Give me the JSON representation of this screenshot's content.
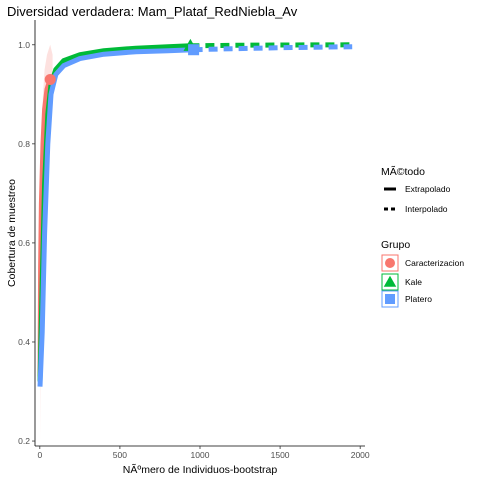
{
  "chart_data": {
    "type": "line",
    "title": "Diversidad verdadera: Mam_Plataf_RedNiebla_Av",
    "xlabel": "NÃºmero de Individuos-bootstrap",
    "ylabel": "Cobertura de muestreo",
    "xlim": [
      -30,
      2030
    ],
    "ylim": [
      0.19,
      1.05
    ],
    "xticks": [
      0,
      500,
      1000,
      1500,
      2000
    ],
    "xtick_labels": [
      "0",
      "500",
      "1000",
      "1500",
      "2000"
    ],
    "yticks": [
      0.2,
      0.4,
      0.6,
      0.8,
      1.0
    ],
    "ytick_labels": [
      "0.2",
      "0.4",
      "0.6",
      "0.8",
      "1.0"
    ],
    "grid": false,
    "legend_position": "right",
    "legend": {
      "method_title": "MÃ©todo",
      "method_items": [
        "Extrapolado",
        "Interpolado"
      ],
      "group_title": "Grupo",
      "group_items": [
        "Caracterizacion",
        "Kale",
        "Platero"
      ]
    },
    "series": [
      {
        "name": "Caracterizacion",
        "color": "#F8766D",
        "marker": "circle",
        "observed": [
          65,
          0.93
        ],
        "interpolated": [
          [
            1,
            0.33
          ],
          [
            5,
            0.55
          ],
          [
            10,
            0.68
          ],
          [
            20,
            0.8
          ],
          [
            30,
            0.87
          ],
          [
            45,
            0.91
          ],
          [
            65,
            0.93
          ]
        ],
        "extrapolated": [],
        "band": [
          [
            1,
            0.2,
            0.47
          ],
          [
            5,
            0.4,
            0.7
          ],
          [
            10,
            0.52,
            0.8
          ],
          [
            20,
            0.66,
            0.9
          ],
          [
            30,
            0.78,
            0.95
          ],
          [
            45,
            0.85,
            0.98
          ],
          [
            65,
            0.88,
            1.0
          ],
          [
            80,
            0.91,
            0.98
          ]
        ]
      },
      {
        "name": "Kale",
        "color": "#00BA38",
        "marker": "triangle",
        "observed": [
          940,
          0.998
        ],
        "interpolated": [
          [
            1,
            0.32
          ],
          [
            15,
            0.52
          ],
          [
            30,
            0.72
          ],
          [
            50,
            0.86
          ],
          [
            70,
            0.92
          ],
          [
            100,
            0.95
          ],
          [
            150,
            0.968
          ],
          [
            250,
            0.98
          ],
          [
            400,
            0.988
          ],
          [
            600,
            0.993
          ],
          [
            800,
            0.996
          ],
          [
            940,
            0.998
          ]
        ],
        "extrapolated": [
          [
            940,
            0.998
          ],
          [
            1200,
            0.999
          ],
          [
            1500,
            0.9995
          ],
          [
            1950,
            1.0
          ]
        ],
        "band": []
      },
      {
        "name": "Platero",
        "color": "#619CFF",
        "marker": "square",
        "observed": [
          960,
          0.99
        ],
        "interpolated": [
          [
            1,
            0.31
          ],
          [
            15,
            0.42
          ],
          [
            30,
            0.62
          ],
          [
            50,
            0.8
          ],
          [
            70,
            0.9
          ],
          [
            100,
            0.94
          ],
          [
            150,
            0.958
          ],
          [
            250,
            0.972
          ],
          [
            400,
            0.981
          ],
          [
            600,
            0.986
          ],
          [
            800,
            0.988
          ],
          [
            960,
            0.99
          ]
        ],
        "extrapolated": [
          [
            960,
            0.99
          ],
          [
            1200,
            0.992
          ],
          [
            1500,
            0.994
          ],
          [
            1950,
            0.996
          ]
        ],
        "band": []
      }
    ]
  }
}
